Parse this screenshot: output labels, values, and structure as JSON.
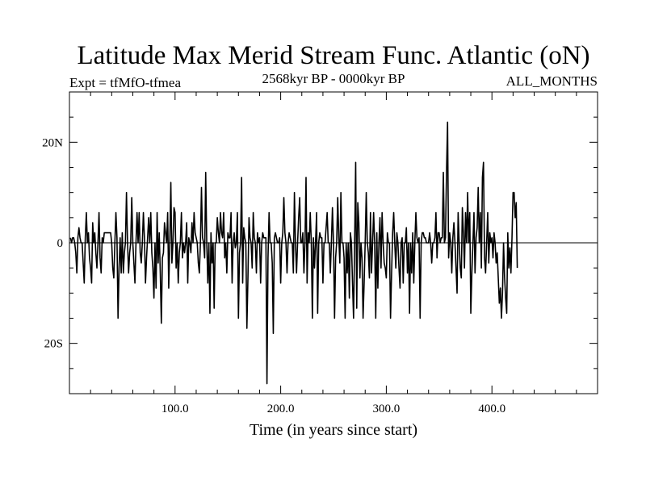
{
  "chart_data": {
    "type": "line",
    "title": "Latitude Max Merid Stream Func. Atlantic (oN)",
    "subtitle_left": "Expt = tfMfO-tfmea",
    "subtitle_center": "2568kyr BP - 0000kyr BP",
    "subtitle_right": "ALL_MONTHS",
    "xlabel": "Time (in years since start)",
    "ylabel": "",
    "xlim": [
      0,
      500
    ],
    "ylim": [
      -30,
      30
    ],
    "x_ticks": [
      100,
      200,
      300,
      400
    ],
    "x_tick_labels": [
      "100.0",
      "200.0",
      "300.0",
      "400.0"
    ],
    "y_ticks": [
      -20,
      0,
      20
    ],
    "y_tick_labels": [
      "20S",
      "0",
      "20N"
    ],
    "series": [
      {
        "name": "Latitude Max Merid Stream Func",
        "x_start": 1,
        "x_step": 1,
        "values": [
          1,
          0,
          1,
          1,
          0,
          -2,
          -6,
          1,
          3,
          1,
          0,
          0,
          -4,
          -8,
          1,
          6,
          0,
          2,
          -3,
          -5,
          -8,
          4,
          0,
          2,
          -2,
          -5,
          0,
          6,
          -3,
          -6,
          1,
          0,
          2,
          2,
          2,
          2,
          2,
          2,
          2,
          0,
          -5,
          -7,
          0,
          6,
          1,
          -15,
          -5,
          1,
          -6,
          2,
          -6,
          -2,
          0,
          10,
          0,
          -6,
          -2,
          0,
          9,
          0,
          -4,
          -8,
          0,
          6,
          0,
          6,
          -2,
          -4,
          0,
          6,
          1,
          -8,
          -3,
          1,
          5,
          0,
          6,
          -2,
          -5,
          -11,
          0,
          -9,
          6,
          -4,
          2,
          -6,
          -16,
          -3,
          -2,
          4,
          2,
          0,
          6,
          -9,
          0,
          12,
          -4,
          0,
          7,
          6,
          -5,
          0,
          -8,
          -2,
          0,
          6,
          -3,
          0,
          -2,
          0,
          4,
          -8,
          1,
          0,
          -2,
          4,
          0,
          6,
          2,
          1,
          0,
          -4,
          -6,
          0,
          11,
          1,
          0,
          -3,
          14,
          0,
          -8,
          0,
          -14,
          2,
          -4,
          0,
          -13,
          0,
          0,
          5,
          2,
          0,
          6,
          2,
          1,
          6,
          -3,
          0,
          -6,
          2,
          1,
          1,
          6,
          -8,
          0,
          2,
          -1,
          0,
          6,
          -15,
          -2,
          0,
          13,
          -8,
          3,
          1,
          0,
          -17,
          -7,
          5,
          1,
          0,
          -5,
          6,
          1,
          0,
          -6,
          2,
          0,
          1,
          -8,
          0,
          2,
          1,
          1,
          1,
          -28,
          -3,
          6,
          0,
          0,
          -4,
          -18,
          1,
          2,
          1,
          0,
          0,
          1,
          -8,
          0,
          2,
          9,
          2,
          0,
          -6,
          0,
          2,
          1,
          0,
          0,
          -6,
          10,
          0,
          -6,
          0,
          5,
          9,
          0,
          0,
          2,
          -6,
          0,
          13,
          -8,
          2,
          0,
          6,
          0,
          -15,
          1,
          -5,
          0,
          6,
          -14,
          0,
          2,
          1,
          1,
          -8,
          0,
          0,
          3,
          6,
          0,
          0,
          -6,
          0,
          7,
          0,
          -15,
          -3,
          0,
          9,
          1,
          -4,
          10,
          0,
          0,
          -3,
          -15,
          0,
          -6,
          0,
          -11,
          2,
          0,
          -8,
          -15,
          0,
          16,
          -13,
          8,
          4,
          -7,
          0,
          -3,
          -15,
          -8,
          0,
          10,
          0,
          -2,
          -7,
          6,
          -6,
          0,
          6,
          0,
          -15,
          2,
          -9,
          0,
          5,
          -5,
          6,
          0,
          -4,
          -5,
          -7,
          2,
          0,
          0,
          -15,
          -6,
          2,
          6,
          0,
          -5,
          2,
          0,
          -5,
          -9,
          0,
          1,
          -8,
          0,
          0,
          3,
          -6,
          0,
          -14,
          0,
          -6,
          2,
          -8,
          0,
          6,
          1,
          0,
          1,
          -15,
          0,
          2,
          2,
          1,
          1,
          0,
          0,
          0,
          2,
          0,
          -4,
          0,
          0,
          1,
          6,
          -3,
          2,
          2,
          0,
          1,
          1,
          14,
          0,
          1,
          14,
          24,
          -3,
          2,
          0,
          -6,
          1,
          4,
          0,
          -5,
          -10,
          6,
          0,
          -5,
          -7,
          7,
          2,
          -5,
          6,
          0,
          10,
          0,
          6,
          -14,
          -6,
          0,
          6,
          -6,
          1,
          3,
          11,
          0,
          6,
          -5,
          13,
          16,
          -3,
          -6,
          0,
          6,
          -4,
          2,
          0,
          1,
          -3,
          2,
          0,
          -4,
          -2,
          -7,
          -12,
          -9,
          -15,
          -10,
          0,
          -7,
          -11,
          -14,
          2,
          -5,
          -1,
          -6,
          1,
          10,
          10,
          5,
          8,
          -5
        ]
      }
    ]
  }
}
